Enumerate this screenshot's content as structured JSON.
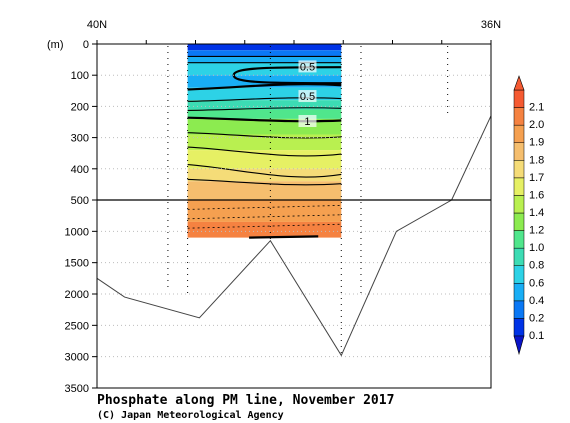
{
  "chart_data": {
    "type": "heatmap",
    "title": "Phosphate along PM line, November 2017",
    "credit": "(C) Japan Meteorological Agency",
    "x_axis": {
      "left_label": "40N",
      "right_label": "36N"
    },
    "y_axis": {
      "unit_label": "(m)",
      "upper_ticks": [
        0,
        100,
        200,
        300,
        400,
        500
      ],
      "lower_ticks": [
        1000,
        1500,
        2000,
        2500,
        3000,
        3500
      ]
    },
    "colorbar": {
      "levels": [
        0.1,
        0.2,
        0.4,
        0.6,
        0.8,
        1.0,
        1.2,
        1.4,
        1.6,
        1.7,
        1.8,
        1.9,
        2.0,
        2.1
      ],
      "labels": [
        "0.1",
        "0.2",
        "0.4",
        "0.6",
        "0.8",
        "1.0",
        "1.2",
        "1.4",
        "1.6",
        "1.7",
        "1.8",
        "1.9",
        "2.0",
        "2.1"
      ],
      "colors": [
        "#0033e6",
        "#0a78f5",
        "#19aef5",
        "#2dd2e6",
        "#3cdcb4",
        "#50e68c",
        "#8ceb50",
        "#b9f050",
        "#e6f064",
        "#f5dc78",
        "#f5be6e",
        "#f5a050",
        "#f58241",
        "#f55a32"
      ]
    },
    "contour_labels": [
      "0.5",
      "0.5",
      "1"
    ],
    "stations_x_percent": [
      18,
      23,
      44,
      62,
      67,
      89
    ],
    "data_section_x_percent": [
      23,
      62
    ],
    "bottom_profile": [
      {
        "x_percent": 0,
        "depth_m": 1750
      },
      {
        "x_percent": 7,
        "depth_m": 2050
      },
      {
        "x_percent": 26,
        "depth_m": 2380
      },
      {
        "x_percent": 44,
        "depth_m": 1150
      },
      {
        "x_percent": 62,
        "depth_m": 2980
      },
      {
        "x_percent": 76,
        "depth_m": 1000
      },
      {
        "x_percent": 90,
        "depth_m": 500
      },
      {
        "x_percent": 100,
        "depth_m": 230
      }
    ],
    "depth_bands": [
      {
        "top_m": 0,
        "bottom_m": 20,
        "level_index": 0
      },
      {
        "top_m": 20,
        "bottom_m": 40,
        "level_index": 1
      },
      {
        "top_m": 40,
        "bottom_m": 60,
        "level_index": 2
      },
      {
        "top_m": 60,
        "bottom_m": 100,
        "level_index": 3
      },
      {
        "top_m": 100,
        "bottom_m": 140,
        "level_index": 2
      },
      {
        "top_m": 140,
        "bottom_m": 180,
        "level_index": 3
      },
      {
        "top_m": 180,
        "bottom_m": 210,
        "level_index": 4
      },
      {
        "top_m": 210,
        "bottom_m": 240,
        "level_index": 5
      },
      {
        "top_m": 240,
        "bottom_m": 290,
        "level_index": 6
      },
      {
        "top_m": 290,
        "bottom_m": 340,
        "level_index": 7
      },
      {
        "top_m": 340,
        "bottom_m": 400,
        "level_index": 8
      },
      {
        "top_m": 400,
        "bottom_m": 440,
        "level_index": 9
      },
      {
        "top_m": 440,
        "bottom_m": 500,
        "level_index": 10
      },
      {
        "top_m": 500,
        "bottom_m": 850,
        "level_index": 11
      },
      {
        "top_m": 850,
        "bottom_m": 1100,
        "level_index": 12
      }
    ]
  }
}
